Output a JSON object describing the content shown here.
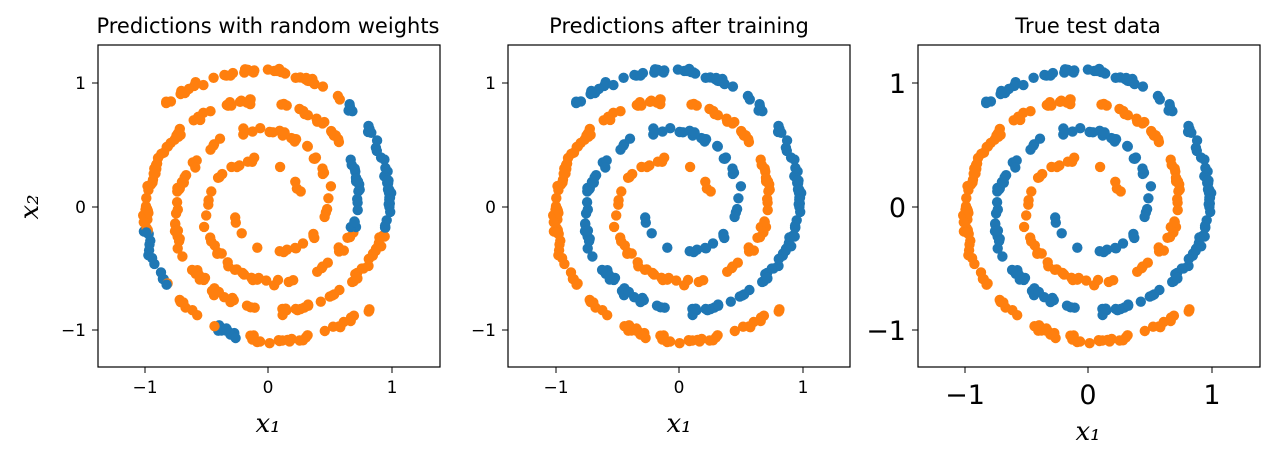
{
  "colors": {
    "class_a": "#1f77b4",
    "class_b": "#ff7f0e"
  },
  "chart_data": [
    {
      "type": "scatter",
      "title": "Predictions with random weights",
      "xlabel": "x₁",
      "ylabel": "x₂",
      "xticks": [
        "−1",
        "0",
        "1"
      ],
      "yticks": [
        "−1",
        "0",
        "1"
      ],
      "xlim": [
        -1.35,
        1.38
      ],
      "ylim": [
        -1.3,
        1.3
      ],
      "coloring": "random"
    },
    {
      "type": "scatter",
      "title": "Predictions after training",
      "xlabel": "x₁",
      "ylabel": "",
      "xticks": [
        "−1",
        "0",
        "1"
      ],
      "yticks": [
        "−1",
        "0",
        "1"
      ],
      "xlim": [
        -1.35,
        1.38
      ],
      "ylim": [
        -1.3,
        1.3
      ],
      "coloring": "spiral"
    },
    {
      "type": "scatter",
      "title": "True test data",
      "xlabel": "x₁",
      "ylabel": "",
      "xticks": [
        "−1",
        "0",
        "1"
      ],
      "yticks": [
        "−1",
        "0",
        "1"
      ],
      "xlim": [
        -1.35,
        1.38
      ],
      "ylim": [
        -1.3,
        1.3
      ],
      "coloring": "spiral"
    }
  ]
}
